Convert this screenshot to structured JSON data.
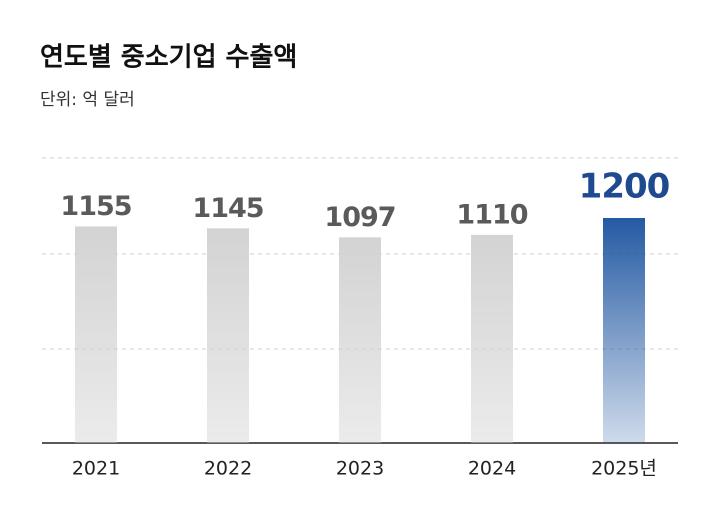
{
  "chart_data": {
    "type": "bar",
    "title": "연도별 중소기업 수출액",
    "subtitle": "단위: 억 달러",
    "categories": [
      "2021",
      "2022",
      "2023",
      "2024",
      "2025년"
    ],
    "values": [
      1155,
      1145,
      1097,
      1110,
      1200
    ],
    "colors": [
      "#d3d3d3",
      "#d3d3d3",
      "#d3d3d3",
      "#d3d3d3",
      "#245aa3"
    ],
    "ylim": [
      0,
      1520
    ]
  }
}
